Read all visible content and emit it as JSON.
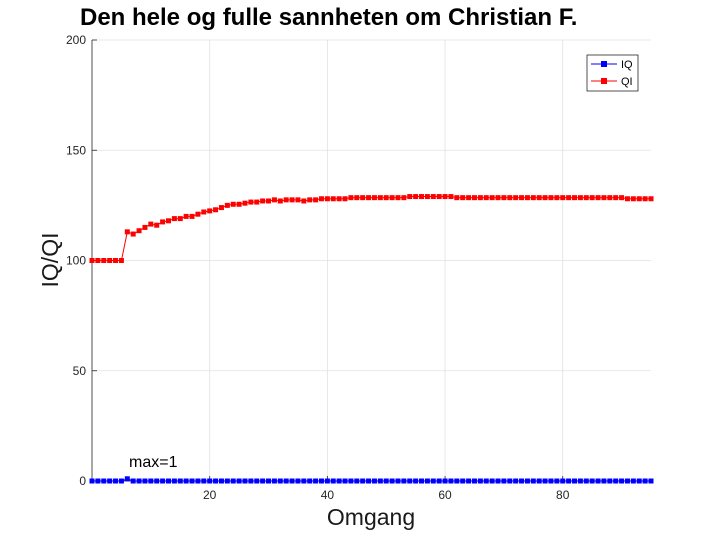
{
  "chart_data": {
    "type": "line",
    "title": "Den hele og fulle sannheten om Christian F.",
    "xlabel": "Omgang",
    "ylabel": "IQ/QI",
    "xlim": [
      0,
      95
    ],
    "ylim": [
      0,
      200
    ],
    "xticks": [
      20,
      40,
      60,
      80
    ],
    "yticks": [
      0,
      50,
      100,
      150,
      200
    ],
    "grid": true,
    "legend_position": "top-right",
    "annotation": {
      "text": "max=1",
      "x": 6,
      "y": 1
    },
    "series": [
      {
        "name": "IQ",
        "color": "#0000ff",
        "marker": "square",
        "x": [
          0,
          1,
          2,
          3,
          4,
          5,
          6,
          7,
          8,
          9,
          10,
          11,
          12,
          13,
          14,
          15,
          16,
          17,
          18,
          19,
          20,
          21,
          22,
          23,
          24,
          25,
          26,
          27,
          28,
          29,
          30,
          31,
          32,
          33,
          34,
          35,
          36,
          37,
          38,
          39,
          40,
          41,
          42,
          43,
          44,
          45,
          46,
          47,
          48,
          49,
          50,
          51,
          52,
          53,
          54,
          55,
          56,
          57,
          58,
          59,
          60,
          61,
          62,
          63,
          64,
          65,
          66,
          67,
          68,
          69,
          70,
          71,
          72,
          73,
          74,
          75,
          76,
          77,
          78,
          79,
          80,
          81,
          82,
          83,
          84,
          85,
          86,
          87,
          88,
          89,
          90,
          91,
          92,
          93,
          94,
          95
        ],
        "y": [
          0,
          0,
          0,
          0,
          0,
          0,
          1,
          0,
          0,
          0,
          0,
          0,
          0,
          0,
          0,
          0,
          0,
          0,
          0,
          0,
          0,
          0,
          0,
          0,
          0,
          0,
          0,
          0,
          0,
          0,
          0,
          0,
          0,
          0,
          0,
          0,
          0,
          0,
          0,
          0,
          0,
          0,
          0,
          0,
          0,
          0,
          0,
          0,
          0,
          0,
          0,
          0,
          0,
          0,
          0,
          0,
          0,
          0,
          0,
          0,
          0,
          0,
          0,
          0,
          0,
          0,
          0,
          0,
          0,
          0,
          0,
          0,
          0,
          0,
          0,
          0,
          0,
          0,
          0,
          0,
          0,
          0,
          0,
          0,
          0,
          0,
          0,
          0,
          0,
          0,
          0,
          0,
          0,
          0,
          0,
          0
        ]
      },
      {
        "name": "QI",
        "color": "#ff0000",
        "marker": "square",
        "x": [
          0,
          1,
          2,
          3,
          4,
          5,
          6,
          7,
          8,
          9,
          10,
          11,
          12,
          13,
          14,
          15,
          16,
          17,
          18,
          19,
          20,
          21,
          22,
          23,
          24,
          25,
          26,
          27,
          28,
          29,
          30,
          31,
          32,
          33,
          34,
          35,
          36,
          37,
          38,
          39,
          40,
          41,
          42,
          43,
          44,
          45,
          46,
          47,
          48,
          49,
          50,
          51,
          52,
          53,
          54,
          55,
          56,
          57,
          58,
          59,
          60,
          61,
          62,
          63,
          64,
          65,
          66,
          67,
          68,
          69,
          70,
          71,
          72,
          73,
          74,
          75,
          76,
          77,
          78,
          79,
          80,
          81,
          82,
          83,
          84,
          85,
          86,
          87,
          88,
          89,
          90,
          91,
          92,
          93,
          94,
          95
        ],
        "y": [
          100,
          100,
          100,
          100,
          100,
          100,
          113,
          112,
          113.5,
          115,
          116.5,
          116,
          117.5,
          118,
          119,
          119,
          120,
          120,
          121,
          122,
          122.5,
          123,
          124,
          125,
          125.5,
          125.5,
          126,
          126.5,
          126.5,
          127,
          127,
          127.5,
          127,
          127.5,
          127.5,
          127.5,
          127,
          127.5,
          127.5,
          128,
          128,
          128,
          128,
          128,
          128.5,
          128.5,
          128.5,
          128.5,
          128.5,
          128.5,
          128.5,
          128.5,
          128.5,
          128.5,
          129,
          129,
          129,
          129,
          129,
          129,
          129,
          129,
          128.5,
          128.5,
          128.5,
          128.5,
          128.5,
          128.5,
          128.5,
          128.5,
          128.5,
          128.5,
          128.5,
          128.5,
          128.5,
          128.5,
          128.5,
          128.5,
          128.5,
          128.5,
          128.5,
          128.5,
          128.5,
          128.5,
          128.5,
          128.5,
          128.5,
          128.5,
          128.5,
          128.5,
          128.5,
          128,
          128,
          128,
          128,
          128
        ]
      }
    ]
  }
}
